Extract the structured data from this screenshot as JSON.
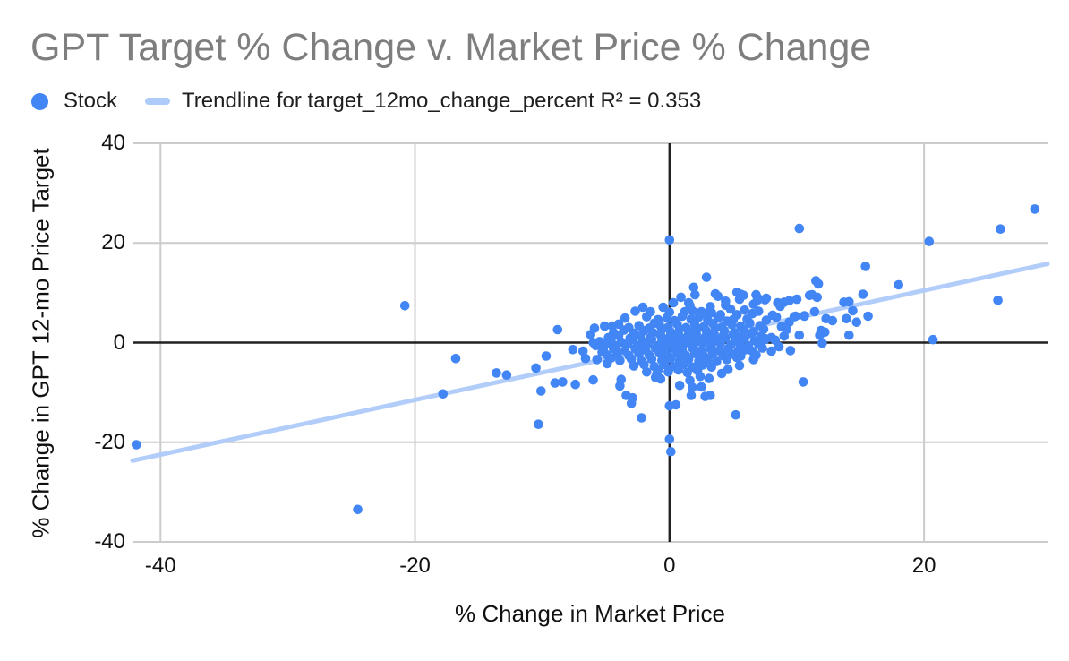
{
  "title": "GPT Target % Change v. Market Price % Change",
  "colors": {
    "point": "#4285F4",
    "trendline": "#AECBFA",
    "grid": "#CCCCCC",
    "zero_axis": "#212121",
    "title_text": "#7E7E7E",
    "label_text": "#111111"
  },
  "legend": {
    "items": [
      {
        "swatch": "dot-swatch",
        "label": "Stock",
        "color": "#4285F4"
      },
      {
        "swatch": "line-swatch",
        "label": "Trendline for target_12mo_change_percent R² = 0.353",
        "color": "#AECBFA"
      }
    ]
  },
  "chart_data": {
    "type": "scatter",
    "title": "GPT Target % Change v. Market Price % Change",
    "xlabel": "% Change in Market Price",
    "ylabel": "% Change in GPT 12-mo Price Target",
    "xlim": [
      -42.2,
      29.7
    ],
    "ylim": [
      -40,
      40
    ],
    "x_ticks": [
      -40,
      -20,
      0,
      20
    ],
    "y_ticks": [
      40,
      20,
      0,
      -20,
      -40
    ],
    "grid": true,
    "legend_position": "top-left",
    "trendline": {
      "label": "Trendline for target_12mo_change_percent",
      "r2": "R² = 0.353",
      "color": "#AECBFA",
      "x": [
        -42.2,
        29.7
      ],
      "y": [
        -23.7,
        15.8
      ]
    },
    "series": [
      {
        "name": "Stock",
        "color": "#4285F4",
        "points": [
          [
            -41.9,
            -20.5
          ],
          [
            -24.5,
            -33.5
          ],
          [
            -20.8,
            7.4
          ],
          [
            -17.8,
            -10.3
          ],
          [
            -16.8,
            -3.2
          ],
          [
            -13.6,
            -6.1
          ],
          [
            -12.8,
            -6.5
          ],
          [
            -10.5,
            -5.1
          ],
          [
            -10.3,
            -16.4
          ],
          [
            -10.1,
            -9.7
          ],
          [
            -9.7,
            -2.7
          ],
          [
            -9.0,
            -8.1
          ],
          [
            -8.8,
            2.6
          ],
          [
            -8.4,
            -7.9
          ],
          [
            -7.6,
            -1.4
          ],
          [
            -7.4,
            -8.4
          ],
          [
            -6.8,
            -1.7
          ],
          [
            -6.6,
            -3.2
          ],
          [
            -6.2,
            1.6
          ],
          [
            -6.0,
            0.0
          ],
          [
            -6.0,
            -7.5
          ],
          [
            -5.3,
            -1.9
          ],
          [
            -4.6,
            -3.1
          ],
          [
            -4.5,
            3.3
          ],
          [
            -4.0,
            3.7
          ],
          [
            -3.9,
            -8.7
          ],
          [
            -3.8,
            -7.4
          ],
          [
            -3.5,
            4.9
          ],
          [
            -3.4,
            -10.6
          ],
          [
            -3.0,
            -12.2
          ],
          [
            -2.9,
            -11.1
          ],
          [
            -2.7,
            6.3
          ],
          [
            -2.2,
            -15.1
          ],
          [
            -2.1,
            7.1
          ],
          [
            -1.5,
            6.2
          ],
          [
            -1.1,
            -7.0
          ],
          [
            -0.7,
            -7.3
          ],
          [
            0.0,
            -12.7
          ],
          [
            0.5,
            -12.5
          ],
          [
            0.0,
            -19.4
          ],
          [
            0.1,
            -21.9
          ],
          [
            1.6,
            -7.6
          ],
          [
            1.8,
            -9.0
          ],
          [
            1.7,
            -10.6
          ],
          [
            2.8,
            -10.8
          ],
          [
            3.2,
            -10.6
          ],
          [
            5.2,
            -14.5
          ],
          [
            10.5,
            -7.9
          ],
          [
            0.0,
            20.6
          ],
          [
            10.2,
            22.9
          ],
          [
            28.7,
            26.8
          ],
          [
            26.0,
            22.8
          ],
          [
            20.4,
            20.3
          ],
          [
            15.4,
            15.3
          ],
          [
            18.0,
            11.6
          ],
          [
            25.8,
            8.5
          ],
          [
            20.7,
            0.6
          ],
          [
            2.9,
            13.1
          ],
          [
            1.9,
            11.1
          ],
          [
            2.0,
            9.6
          ],
          [
            3.6,
            9.8
          ],
          [
            3.8,
            9.3
          ],
          [
            5.3,
            10.1
          ],
          [
            5.5,
            8.7
          ],
          [
            5.6,
            9.7
          ],
          [
            6.6,
            7.7
          ],
          [
            7.0,
            8.8
          ],
          [
            7.5,
            8.6
          ],
          [
            8.7,
            7.3
          ],
          [
            9.4,
            8.4
          ],
          [
            10.0,
            8.7
          ],
          [
            11.0,
            9.5
          ],
          [
            11.5,
            12.4
          ],
          [
            11.7,
            11.8
          ],
          [
            11.2,
            9.6
          ],
          [
            11.6,
            9.1
          ],
          [
            13.7,
            8.1
          ],
          [
            14.1,
            8.2
          ],
          [
            15.2,
            9.7
          ],
          [
            9.9,
            5.3
          ],
          [
            10.6,
            5.3
          ],
          [
            11.4,
            6.2
          ],
          [
            12.3,
            4.8
          ],
          [
            12.8,
            4.4
          ],
          [
            13.9,
            4.8
          ],
          [
            14.7,
            4.1
          ],
          [
            15.6,
            5.3
          ],
          [
            14.4,
            6.4
          ],
          [
            11.9,
            2.4
          ],
          [
            12.2,
            2.1
          ],
          [
            10.2,
            1.5
          ],
          [
            12.0,
            -0.1
          ],
          [
            14.1,
            1.5
          ],
          [
            8.5,
            8.0
          ],
          [
            9.0,
            8.1
          ],
          [
            7.6,
            4.5
          ],
          [
            8.1,
            5.5
          ],
          [
            8.4,
            5.1
          ],
          [
            9.8,
            5.2
          ],
          [
            10.6,
            5.4
          ],
          [
            9.4,
            4.1
          ],
          [
            11.8,
            1.5
          ],
          [
            9.0,
            1.3
          ],
          [
            7.5,
            0.6
          ],
          [
            7.3,
            -1.1
          ],
          [
            5.9,
            -1.5
          ],
          [
            6.5,
            -1.7
          ],
          [
            6.8,
            -2.5
          ],
          [
            8.0,
            -1.7
          ],
          [
            9.5,
            -1.6
          ],
          [
            5.3,
            -3.0
          ],
          [
            6.6,
            -3.4
          ],
          [
            6.9,
            8.5
          ],
          [
            7.6,
            8.9
          ],
          [
            5.8,
            9.5
          ],
          [
            6.8,
            9.6
          ],
          [
            0.3,
            8.0
          ],
          [
            1.5,
            8.0
          ],
          [
            1.8,
            6.4
          ],
          [
            2.5,
            6.2
          ],
          [
            3.3,
            6.0
          ],
          [
            4.0,
            5.6
          ],
          [
            4.8,
            6.7
          ],
          [
            5.3,
            5.6
          ],
          [
            1.6,
            7.4
          ],
          [
            -1.8,
            5.2
          ],
          [
            -0.9,
            4.6
          ],
          [
            -0.2,
            5.0
          ],
          [
            0.4,
            4.4
          ],
          [
            1.0,
            5.3
          ],
          [
            1.7,
            4.7
          ],
          [
            2.3,
            5.1
          ],
          [
            3.0,
            4.5
          ],
          [
            3.8,
            4.9
          ],
          [
            4.5,
            4.3
          ],
          [
            0.0,
            6.1
          ],
          [
            1.2,
            6.2
          ],
          [
            2.8,
            5.8
          ],
          [
            -1.2,
            3.9
          ],
          [
            5.0,
            4.6
          ],
          [
            -3.2,
            3.0
          ],
          [
            -2.4,
            3.4
          ],
          [
            -1.6,
            2.9
          ],
          [
            -0.8,
            3.6
          ],
          [
            -0.1,
            3.1
          ],
          [
            0.6,
            3.7
          ],
          [
            1.3,
            3.0
          ],
          [
            2.0,
            3.5
          ],
          [
            2.7,
            3.2
          ],
          [
            3.4,
            3.8
          ],
          [
            4.1,
            3.1
          ],
          [
            4.9,
            3.6
          ],
          [
            5.6,
            3.3
          ],
          [
            6.3,
            3.9
          ],
          [
            7.1,
            3.4
          ],
          [
            -4.4,
            2.0
          ],
          [
            -3.6,
            2.5
          ],
          [
            -2.8,
            1.9
          ],
          [
            -2.0,
            2.4
          ],
          [
            -1.3,
            2.0
          ],
          [
            -0.6,
            2.6
          ],
          [
            0.1,
            2.1
          ],
          [
            0.8,
            2.7
          ],
          [
            1.5,
            2.2
          ],
          [
            2.2,
            2.8
          ],
          [
            2.9,
            2.3
          ],
          [
            3.6,
            2.9
          ],
          [
            4.3,
            2.4
          ],
          [
            5.1,
            2.0
          ],
          [
            5.8,
            2.6
          ],
          [
            6.6,
            2.2
          ],
          [
            7.4,
            2.7
          ],
          [
            -4.8,
            1.0
          ],
          [
            -4.0,
            1.4
          ],
          [
            -3.1,
            0.9
          ],
          [
            -2.3,
            1.3
          ],
          [
            -1.5,
            1.0
          ],
          [
            -0.7,
            1.5
          ],
          [
            0.0,
            1.1
          ],
          [
            0.7,
            1.6
          ],
          [
            1.4,
            1.2
          ],
          [
            2.1,
            1.7
          ],
          [
            2.8,
            1.1
          ],
          [
            3.5,
            1.6
          ],
          [
            4.2,
            1.2
          ],
          [
            5.0,
            1.7
          ],
          [
            5.7,
            1.3
          ],
          [
            6.4,
            1.8
          ],
          [
            7.2,
            1.3
          ],
          [
            8.0,
            1.0
          ],
          [
            -5.5,
            0.2
          ],
          [
            -4.6,
            0.5
          ],
          [
            -3.8,
            0.1
          ],
          [
            -2.9,
            0.6
          ],
          [
            -2.1,
            0.2
          ],
          [
            -1.4,
            0.7
          ],
          [
            -0.6,
            0.3
          ],
          [
            0.2,
            0.8
          ],
          [
            0.9,
            0.4
          ],
          [
            1.6,
            0.9
          ],
          [
            2.3,
            0.3
          ],
          [
            3.0,
            0.8
          ],
          [
            3.7,
            0.4
          ],
          [
            4.4,
            0.9
          ],
          [
            5.2,
            0.5
          ],
          [
            5.9,
            0.9
          ],
          [
            6.7,
            0.4
          ],
          [
            7.5,
            0.8
          ],
          [
            8.3,
            0.5
          ],
          [
            -5.8,
            -0.6
          ],
          [
            -5.0,
            -0.3
          ],
          [
            -4.2,
            -0.7
          ],
          [
            -3.3,
            -0.3
          ],
          [
            -2.5,
            -0.6
          ],
          [
            -1.7,
            -0.2
          ],
          [
            -0.9,
            -0.6
          ],
          [
            -0.2,
            -0.2
          ],
          [
            0.5,
            -0.6
          ],
          [
            1.2,
            -0.1
          ],
          [
            1.9,
            -0.5
          ],
          [
            2.6,
            -0.1
          ],
          [
            3.3,
            -0.5
          ],
          [
            4.0,
            -0.1
          ],
          [
            4.8,
            -0.5
          ],
          [
            5.5,
            -0.2
          ],
          [
            6.2,
            -0.6
          ],
          [
            7.0,
            -0.3
          ],
          [
            -5.2,
            -1.5
          ],
          [
            -4.4,
            -1.2
          ],
          [
            -3.5,
            -1.6
          ],
          [
            -2.7,
            -1.2
          ],
          [
            -1.9,
            -1.5
          ],
          [
            -1.1,
            -1.1
          ],
          [
            -0.4,
            -1.5
          ],
          [
            0.3,
            -1.1
          ],
          [
            1.0,
            -1.5
          ],
          [
            1.8,
            -1.1
          ],
          [
            2.5,
            -1.6
          ],
          [
            3.2,
            -1.2
          ],
          [
            3.9,
            -1.6
          ],
          [
            4.6,
            -1.2
          ],
          [
            5.4,
            -1.6
          ],
          [
            6.1,
            -1.3
          ],
          [
            -4.9,
            -2.5
          ],
          [
            -4.1,
            -2.2
          ],
          [
            -3.2,
            -2.6
          ],
          [
            -2.4,
            -2.2
          ],
          [
            -1.6,
            -2.5
          ],
          [
            -0.8,
            -2.1
          ],
          [
            -0.1,
            -2.6
          ],
          [
            0.6,
            -2.2
          ],
          [
            1.3,
            -2.6
          ],
          [
            2.0,
            -2.2
          ],
          [
            2.7,
            -2.7
          ],
          [
            3.4,
            -2.3
          ],
          [
            4.2,
            -2.6
          ],
          [
            4.9,
            -2.3
          ],
          [
            5.6,
            -2.7
          ],
          [
            -3.9,
            -3.6
          ],
          [
            -3.0,
            -3.3
          ],
          [
            -2.2,
            -3.7
          ],
          [
            -1.4,
            -3.3
          ],
          [
            -0.6,
            -3.6
          ],
          [
            0.1,
            -3.2
          ],
          [
            0.8,
            -3.7
          ],
          [
            1.5,
            -3.3
          ],
          [
            2.3,
            -3.7
          ],
          [
            3.0,
            -3.4
          ],
          [
            3.7,
            -3.8
          ],
          [
            4.5,
            -3.4
          ],
          [
            -2.8,
            -4.7
          ],
          [
            -2.0,
            -4.4
          ],
          [
            -1.2,
            -4.8
          ],
          [
            -0.4,
            -4.4
          ],
          [
            0.3,
            -4.8
          ],
          [
            1.1,
            -4.4
          ],
          [
            1.8,
            -4.9
          ],
          [
            2.6,
            -4.5
          ],
          [
            3.3,
            -4.9
          ],
          [
            -1.8,
            -5.9
          ],
          [
            -0.9,
            -5.5
          ],
          [
            -0.1,
            -5.9
          ],
          [
            0.7,
            -5.5
          ],
          [
            1.4,
            -6.0
          ],
          [
            2.2,
            -5.6
          ],
          [
            3.2,
            7.2
          ],
          [
            4.4,
            7.5
          ],
          [
            5.9,
            6.5
          ],
          [
            6.5,
            5.8
          ],
          [
            6.1,
            4.7
          ],
          [
            7.0,
            6.3
          ],
          [
            -5.9,
            2.9
          ],
          [
            -5.1,
            3.3
          ],
          [
            4.6,
            -5.4
          ],
          [
            5.5,
            -4.6
          ],
          [
            -1.0,
            -6.3
          ],
          [
            2.4,
            -6.8
          ],
          [
            3.1,
            -7.2
          ],
          [
            4.1,
            -6.2
          ],
          [
            -4.9,
            -4.2
          ],
          [
            -5.7,
            -3.4
          ],
          [
            0.9,
            9.1
          ],
          [
            8.8,
            3.2
          ],
          [
            9.2,
            2.6
          ],
          [
            8.6,
            -0.8
          ],
          [
            4.4,
            8.3
          ],
          [
            -0.5,
            7.1
          ],
          [
            2.5,
            -8.9
          ],
          [
            0.8,
            -8.6
          ]
        ]
      }
    ]
  }
}
